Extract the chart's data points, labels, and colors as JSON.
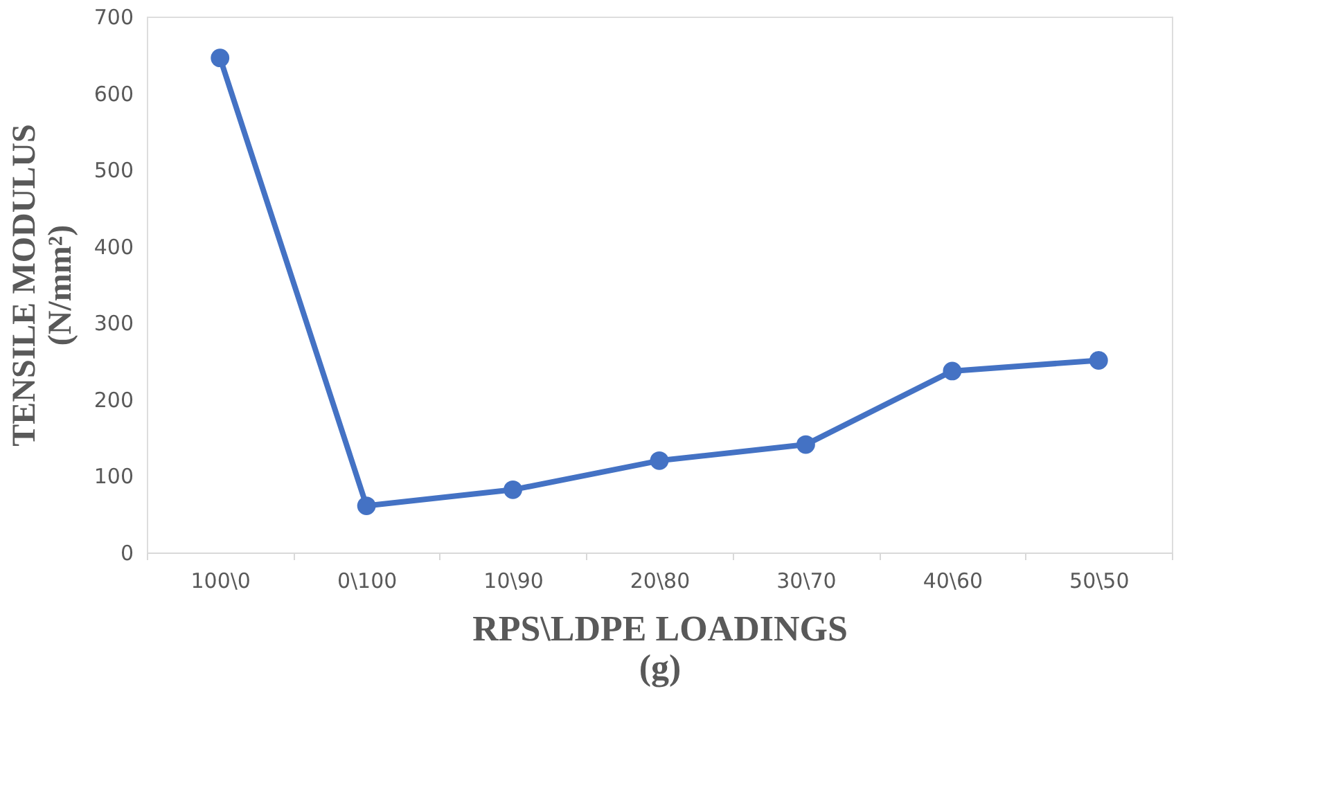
{
  "chart_data": {
    "type": "line",
    "xlabel": "RPS\\LDPE LOADINGS\n(g)",
    "ylabel": "TENSILE MODULUS\n(N/mm²)",
    "categories": [
      "100\\0",
      "0\\100",
      "10\\90",
      "20\\80",
      "30\\70",
      "40\\60",
      "50\\50"
    ],
    "series": [
      {
        "color": "#4472c4",
        "values": [
          646,
          61,
          82,
          120,
          141,
          237,
          251
        ]
      }
    ],
    "ylim": [
      0,
      700
    ],
    "yticks": [
      0,
      100,
      200,
      300,
      400,
      500,
      600,
      700
    ],
    "grid": false,
    "legend": false,
    "marker": "circle",
    "line_style": "solid"
  }
}
